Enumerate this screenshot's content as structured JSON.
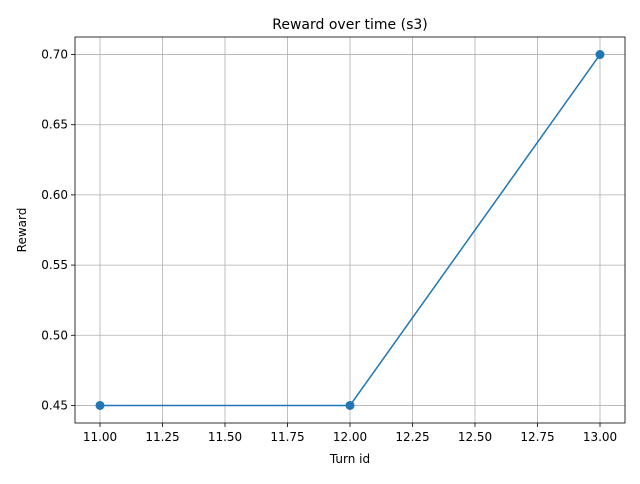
{
  "chart_data": {
    "type": "line",
    "title": "Reward over time (s3)",
    "xlabel": "Turn id",
    "ylabel": "Reward",
    "xlim": [
      10.9,
      13.1
    ],
    "ylim": [
      0.4375,
      0.7125
    ],
    "x_ticks": [
      11.0,
      11.25,
      11.5,
      11.75,
      12.0,
      12.25,
      12.5,
      12.75,
      13.0
    ],
    "x_tick_labels": [
      "11.00",
      "11.25",
      "11.50",
      "11.75",
      "12.00",
      "12.25",
      "12.50",
      "12.75",
      "13.00"
    ],
    "y_ticks": [
      0.45,
      0.5,
      0.55,
      0.6,
      0.65,
      0.7
    ],
    "y_tick_labels": [
      "0.45",
      "0.50",
      "0.55",
      "0.60",
      "0.65",
      "0.70"
    ],
    "grid": true,
    "series": [
      {
        "x": [
          11,
          12,
          13
        ],
        "y": [
          0.45,
          0.45,
          0.7
        ],
        "color": "#1f77b4",
        "marker": "circle"
      }
    ]
  }
}
